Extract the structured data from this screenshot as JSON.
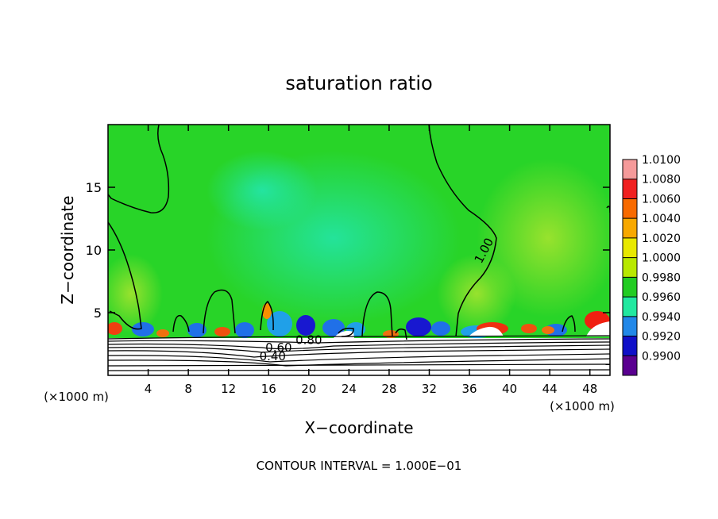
{
  "chart_data": {
    "type": "heatmap",
    "title": "saturation ratio",
    "xlabel": "X−coordinate",
    "ylabel": "Z−coordinate",
    "x_unit_left": "(×1000 m)",
    "x_unit_right": "(×1000 m)",
    "xlim": [
      0,
      50
    ],
    "ylim": [
      0,
      20
    ],
    "x_ticks": [
      4,
      8,
      12,
      16,
      20,
      24,
      28,
      32,
      36,
      40,
      44,
      48
    ],
    "y_ticks": [
      5,
      10,
      15
    ],
    "colorbar_levels": [
      "1.0100",
      "1.0080",
      "1.0060",
      "1.0040",
      "1.0020",
      "1.0000",
      "0.9980",
      "0.9960",
      "0.9940",
      "0.9920",
      "0.9900"
    ],
    "colorbar_colors": [
      "#f59a9a",
      "#f02020",
      "#f86a00",
      "#f8a800",
      "#e8e800",
      "#b8e800",
      "#22cc22",
      "#22e8a0",
      "#2288e8",
      "#1010c8",
      "#5a0090"
    ],
    "contour_labels": [
      {
        "text": "1.00",
        "x": 37.8,
        "z": 9.8
      },
      {
        "text": "0.60",
        "x": 17.0,
        "z": 1.9
      },
      {
        "text": "0.80",
        "x": 20.0,
        "z": 2.5
      },
      {
        "text": "0.40",
        "x": 16.4,
        "z": 1.2
      }
    ],
    "footer": "CONTOUR INTERVAL = 1.000E−01"
  }
}
